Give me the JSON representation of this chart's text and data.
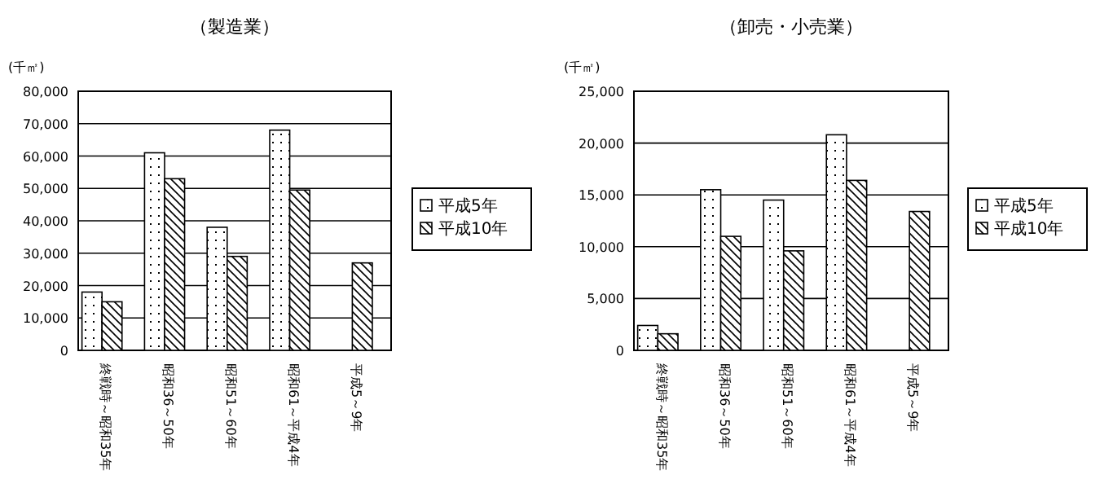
{
  "chart_data": [
    {
      "type": "bar",
      "title": "（製造業）",
      "ylabel": "(千㎡)",
      "categories": [
        "終戦時～昭和35年",
        "昭和36～50年",
        "昭和51～60年",
        "昭和61～平成4年",
        "平成5～9年"
      ],
      "series": [
        {
          "name": "平成5年",
          "color": "#000000",
          "values": [
            18000,
            61000,
            38000,
            68000,
            null
          ]
        },
        {
          "name": "平成10年",
          "color": "#000000",
          "values": [
            15000,
            53000,
            29000,
            49500,
            27000
          ]
        }
      ],
      "ylim": [
        0,
        80000
      ],
      "yticks": [
        {
          "value": 0,
          "label": "0"
        },
        {
          "value": 10000,
          "label": "10,000"
        },
        {
          "value": 20000,
          "label": "20,000"
        },
        {
          "value": 30000,
          "label": "30,000"
        },
        {
          "value": 40000,
          "label": "40,000"
        },
        {
          "value": 50000,
          "label": "50,000"
        },
        {
          "value": 60000,
          "label": "60,000"
        },
        {
          "value": 70000,
          "label": "70,000"
        },
        {
          "value": 80000,
          "label": "80,000"
        }
      ],
      "grid": "y",
      "legend": "right"
    },
    {
      "type": "bar",
      "title": "（卸売・小売業）",
      "ylabel": "(千㎡)",
      "categories": [
        "終戦時～昭和35年",
        "昭和36～50年",
        "昭和51～60年",
        "昭和61～平成4年",
        "平成5～9年"
      ],
      "series": [
        {
          "name": "平成5年",
          "color": "#000000",
          "values": [
            2400,
            15500,
            14500,
            20800,
            null
          ]
        },
        {
          "name": "平成10年",
          "color": "#000000",
          "values": [
            1600,
            11000,
            9600,
            16400,
            13400
          ]
        }
      ],
      "ylim": [
        0,
        25000
      ],
      "yticks": [
        {
          "value": 0,
          "label": "0"
        },
        {
          "value": 5000,
          "label": "5,000"
        },
        {
          "value": 10000,
          "label": "10,000"
        },
        {
          "value": 15000,
          "label": "15,000"
        },
        {
          "value": 20000,
          "label": "20,000"
        },
        {
          "value": 25000,
          "label": "25,000"
        }
      ],
      "grid": "y",
      "legend": "right"
    }
  ]
}
